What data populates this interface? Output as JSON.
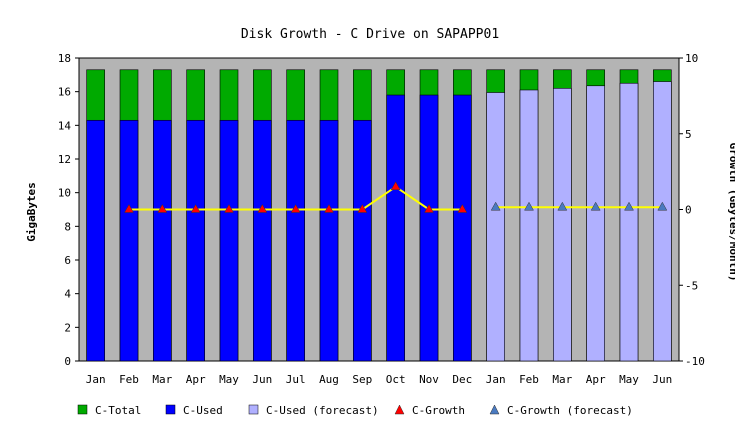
{
  "chart_data": {
    "type": "bar",
    "title": "Disk Growth - C Drive on SAPAPP01",
    "ylabel": "GigaBytes",
    "y2label": "Growth (GBytes/Month)",
    "xlabel": "",
    "ylim": [
      0,
      18
    ],
    "y2lim": [
      -10,
      10
    ],
    "yticks": [
      0,
      2,
      4,
      6,
      8,
      10,
      12,
      14,
      16,
      18
    ],
    "y2ticks": [
      -10,
      -5,
      0,
      5,
      10
    ],
    "grid": false,
    "legend_position": "bottom",
    "categories": [
      "Jan",
      "Feb",
      "Mar",
      "Apr",
      "May",
      "Jun",
      "Jul",
      "Aug",
      "Sep",
      "Oct",
      "Nov",
      "Dec",
      "Jan",
      "Feb",
      "Mar",
      "Apr",
      "May",
      "Jun"
    ],
    "forecast_start_index": 12,
    "series": [
      {
        "name": "C-Total",
        "kind": "bar",
        "color": "#00aa00",
        "values": [
          17.3,
          17.3,
          17.3,
          17.3,
          17.3,
          17.3,
          17.3,
          17.3,
          17.3,
          17.3,
          17.3,
          17.3,
          17.3,
          17.3,
          17.3,
          17.3,
          17.3,
          17.3
        ]
      },
      {
        "name": "C-Used",
        "kind": "bar",
        "color": "#0000ff",
        "values": [
          14.3,
          14.3,
          14.3,
          14.3,
          14.3,
          14.3,
          14.3,
          14.3,
          14.3,
          15.8,
          15.8,
          15.8,
          null,
          null,
          null,
          null,
          null,
          null
        ]
      },
      {
        "name": "C-Used (forecast)",
        "kind": "bar",
        "color": "#b0b0ff",
        "values": [
          null,
          null,
          null,
          null,
          null,
          null,
          null,
          null,
          null,
          null,
          null,
          null,
          15.95,
          16.1,
          16.2,
          16.35,
          16.5,
          16.6
        ]
      },
      {
        "name": "C-Growth",
        "kind": "line",
        "axis": "right",
        "color": "#ffff00",
        "marker_color": "#ff0000",
        "values": [
          null,
          0,
          0,
          0,
          0,
          0,
          0,
          0,
          0,
          1.5,
          0,
          0,
          null,
          null,
          null,
          null,
          null,
          null
        ]
      },
      {
        "name": "C-Growth (forecast)",
        "kind": "line",
        "axis": "right",
        "color": "#ffff00",
        "marker_color": "#4a7ac0",
        "values": [
          null,
          null,
          null,
          null,
          null,
          null,
          null,
          null,
          null,
          null,
          null,
          null,
          0.15,
          0.15,
          0.15,
          0.15,
          0.15,
          0.15
        ]
      }
    ],
    "colors": {
      "plot_background": "#b4b4b4",
      "page_background": "#ffffff"
    }
  }
}
